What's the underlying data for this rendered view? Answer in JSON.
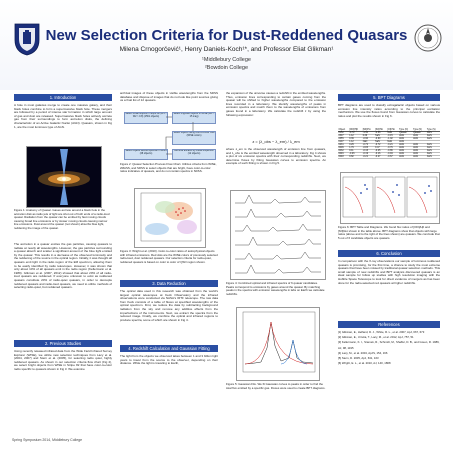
{
  "header": {
    "title": "New Selection Criteria for Dust-Reddened Quasars",
    "authors": "Milena Crnogorčević¹, Henry Daniels-Koch¹*, and Professor Eliat Glikman¹",
    "affiliation_1": "¹Middlebury College",
    "affiliation_2": "²Bowdoin College"
  },
  "sections": {
    "introduction": "1. Introduction",
    "previous_studies": "2. Previous Studies",
    "data_reduction": "3. Data Reduction",
    "redshift": "4. Redshift Calculation and Gaussian Fitting",
    "bpt": "5. BPT Diagrams",
    "conclusion": "6. Conclusion",
    "references": "References"
  },
  "text": {
    "intro_p1": "A hole in most galaxies merge to create one massive galaxy, and their black holes combine to form a supermassive black hole. These mergers are followed by a period of intense star formation in which large amount of gas and dust are released. Supermassive black holes actively accrete gas from their surroundings to form accretion disks, the defining characteristic of an Active Galactic Nuclei (AGN). Quasars, shown in Fig 1, are the most luminous type of AGN.",
    "fig1_caption": "Figure 1: Anatomy of Quasar. Gases accrete around a black hole in the accretion disk as radio jets of light are shot out of both ends of a radio-loud quasar. Radiation from the quasar can be emitted by fast moving clouds causing broad line emissions or by slower moving clouds causing narrow line emissions. Dust around the quasar (not shown) absorbs blue light, reddening the image of the quasar.",
    "intro_p2": "The accretion in a quasar excites the gas particles, causing quasars to radiate at nearly all wavelengths. However, the gas particles surrounding a quasar absorb and scatter a significant amount of the blue light emitted by the quasar. This results in a decrease of the observed luminosity and the reddening of the source in the optical region. Initially, it was thought all quasars emit light in the radio region of the EM spectrum, allowing them to be easily identified by radio telescopes. However, it was shown that only about 10% of all quasars emit in the radio region (Kellermann et al. 1989). Glikman et al. (2007, 2012) showed that about 20% of all radio-loud quasars are reddened. If everyone unknown to exist as reddened quasars constitute 20% of radio-quiet quasars, in order to decouple reddened quasars and radio-loud quasars, we need to utilize methods of selecting radio-quiet, but reddened quasars.",
    "prev_p1": "Using recently released infrared data from the Wide Field Infrared Survey Explorer (WISE), we utilize new selection techniques from Lacy et al.(2004, 2007) and Stern et al. (2005), for selecting radio quiet, highly reddened quasars. As shown in our selection criteria flow chart (Fig 2), we select bright objects from WISE in Stripe 82 that have color-to-color radio specific to quasars shown in Fig 3. We examine",
    "col2_p1": "archival images of these objects in visible wavelengths from the SDSS database and dispose of images that do not look like point sources giving us a final list of 12 quasars.",
    "fig2_caption": "Figure 2: Quasar Selection Process Flow Chart. Utilizes criteria from WISE, 2MASS, and SDSS to select objects that are bright, have color-to-color ratios indicative of quasars, and do not contain spectra in SDSS.",
    "fig3_caption": "Figure 3: Wright et al. (2010). Color-to-color ratios of astrophysical objects with infrared emissions. Red dots are the WISE colors of previously selected radio-loud, dust reddened quasars. Our selection criteria for radio-quiet, reddened quasars is based on color to color of QSO region shown.",
    "data_p1": "The optical data used in this research was obtained from the world's largest optical telescopes at Keck Observatory and the infrared observations were conducted via NASA's IRTF telescope. The raw data from Keck consists of a table of fluxes at specified wavelengths of the optical spectrum. First, we reduce the data by subtracting background radiation from the sky and remove any additive effects from the imperfections of the instruments. Next, we extract the spectra from the reduced image. Finally, we combine the optical and infrared regions to produce spectra, some of which are shown in Fig 4.",
    "redshift_p1": "The light from the objects we observed takes between 1 and 3 billion light years to travel from the source to the observer, depending on their distance. While the light is traveling to Earth,",
    "col3_p1": "the expansion of the universe causes a redshift in the emitted wavelengths. Thus, emission lines corresponding to certain gases coming from the quasar will be shifted to higher wavelengths compared to the emission lines recorded in a laboratory. We identify wavelengths of peaks in emission spectra and match them to the wavelengths of emissions from gases found in a laboratory. We calculate the redshift z by using the following expression:",
    "equation": "z = (λ_obs − λ_em) / λ_em",
    "col3_p2": "where λ_em is the observed wavelength of emission line from quasars, and λ_obs is the emitted wavelength observed in a laboratory. Fig 4 shows a plot of six emission spectra with their corresponding redshifts. Next, we determine fluxes by fitting Gaussian curves to emission spectra. An example of such fitting is shown in Fig 5.",
    "fig4_caption": "Figure 4: Combined optical and infrared spectra of 6 quasar candidates. Peaks correspond to emissions by gases around the quasar. By matching peaks in the spectra with emission wavelengths in labs on Earth we calculate redshifts.",
    "fig5_caption": "Figure 5: Gaussian Fits. We fit Gaussian curves to peaks in order to find the total flux emitted by a specific gas. Fluxes were used to create BPT diagrams.",
    "bpt_p1": "BPT diagrams are used to classify extragalactic objects based on various emission line intensity ratios according to the principal excitation mechanism. We use the fluxes found from Gaussian curves to calculate the ratios and plot the results shown in Fig 6.",
    "fig6_caption": "Figure 6: BPT Table and Diagrams. We found flux ratios of [OIII]/Hβ and [NII]/Hα shown in the table above. BPT diagrams show that objects with large ratios (above and to the right of the lines shown) are quasars. We conclude that 5 out of 6 candidate objects are quasars.",
    "conclusion_p1": "In comparison with the X-ray observations our sample of luminous reddened quasars is promising, for the first time, a chance to study the most extreme quasars that have been missed by traditional quasar selection methods. This small sample of new redshifts and BPT analysis discovered quasars is an ideal sample for follow up studies with high resolution imaging with the Hubble Space Telescope to look for direct evidence of mergers as has been done for the radio-selected red quasars at higher redshifts.",
    "footer": "Spring Symposium 2014, Middlebury College"
  },
  "flow_chart": {
    "box1": "Select WISE objects in Stripe 82 (W1 − W2 > 0.8) (1561 objects)",
    "box2": "Select brightest objects in WISE (W1 < 15 mag)",
    "box3": "Select objects using color-to-color cuts (WISE colors)",
    "box4": "Select objects without spectra in SDSS (48 objects)",
    "box5": "Remove artifacts by visual inspection (12 objects)"
  },
  "bpt_table": {
    "columns": [
      "Object",
      "[OIII]/Hβ",
      "[NII]/Hα",
      "[SII]/Hα",
      "[OI]/Hα",
      "Type (O)",
      "Type (N)",
      "Type (S)"
    ],
    "rows": [
      [
        "2152",
        "-0.72",
        "-1.50",
        "-0.66",
        "NaN",
        "Quasar",
        "Quasar",
        "AGN"
      ],
      [
        "2307",
        "1.12",
        "0.69",
        "NaN",
        "-0.15",
        "AGN",
        "AGN",
        "AGN"
      ],
      [
        "2355",
        "0.39",
        "-0.90",
        "-0.90",
        "-1.02",
        "AGN",
        "AGN",
        "AGN"
      ],
      [
        "0107",
        "1.12",
        "NaN",
        "NaN",
        "NaN",
        "AGN",
        "",
        ""
      ],
      [
        "0231",
        "0.29",
        "-0.72",
        "-0.72",
        "-0.21",
        "AGN",
        "AGN",
        "AGN"
      ],
      [
        "0006",
        "1.79",
        "-0.83",
        "0.47",
        "-0.76",
        "AGN",
        "AGN",
        "AGN"
      ],
      [
        "0032",
        "0.11",
        "-0.16",
        "-0.25",
        "-0.86",
        "AGN",
        "AGN",
        "AGN"
      ],
      [
        "0046",
        "-0.26",
        "-0.19",
        "-0.16",
        "-0.94",
        "AGN",
        "AGN",
        "AGN"
      ],
      [
        "0048",
        "0.82",
        "-0.21",
        "-0.27",
        "-0.67",
        "AGN",
        "AGN",
        "AGN"
      ]
    ]
  },
  "references": [
    "[1] Glikman, E., Helfand, D. J., White, R. L., et al. 2007, ApJ, 667, 673",
    "[2] Glikman, E., Urrutia, T., Lacy, M., et al. 2012, ApJ, 757, 51",
    "[3] Kellermann, K. I., Sramek, R., Schmidt, M., Shaffer, D. B., and Green, R. 1989, AJ, 98, 1195",
    "[4] Lacy, M., et al. 2004, ApJS, 154, 166",
    "[5] Stern, D. 2005, ApJ, 631, 163",
    "[6] Wright, E. L., et al. 2010, AJ, 140, 1868"
  ],
  "colors": {
    "section_bar": "#2a4ea3",
    "title": "#1b2e7a",
    "flow_box": "#cfe0f3"
  }
}
